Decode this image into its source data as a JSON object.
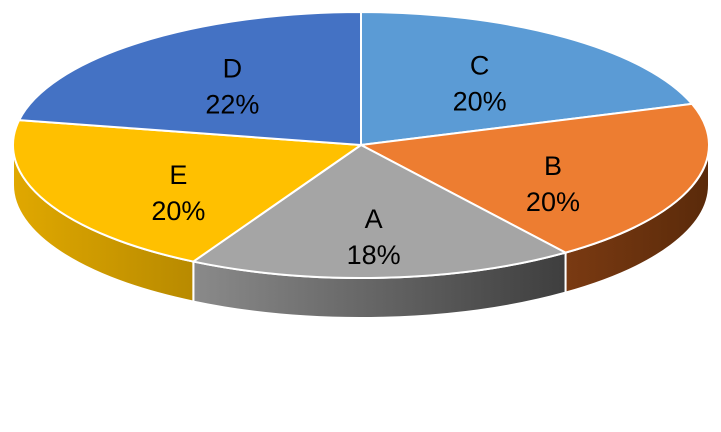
{
  "chart_data": {
    "type": "pie",
    "title": "",
    "slices": [
      {
        "label": "C",
        "percent_label": "20%",
        "value": 20,
        "color": "#5B9BD5",
        "side_color": "#2E5F8E"
      },
      {
        "label": "B",
        "percent_label": "20%",
        "value": 20,
        "color": "#ED7D31",
        "side_color": "#843C0C"
      },
      {
        "label": "A",
        "percent_label": "18%",
        "value": 18,
        "color": "#A5A5A5",
        "side_color": "#5A5A5A"
      },
      {
        "label": "E",
        "percent_label": "20%",
        "value": 20,
        "color": "#FFC000",
        "side_color": "#BF8F00"
      },
      {
        "label": "D",
        "percent_label": "22%",
        "value": 22,
        "color": "#4472C4",
        "side_color": "#2F5597"
      }
    ],
    "start_direction": "12 o'clock",
    "order": "clockwise",
    "style": "3d-perspective",
    "legend": "none",
    "data_labels": "inside slices (category and percentage)"
  }
}
